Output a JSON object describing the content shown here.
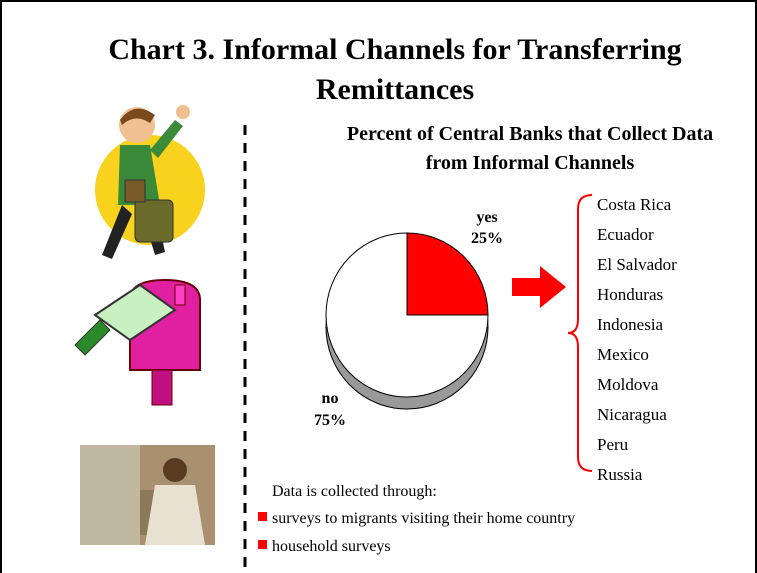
{
  "title": "Chart 3. Informal Channels for Transferring Remittances",
  "chart_data": {
    "type": "pie",
    "title": "Percent of Central Banks that Collect Data from Informal Channels",
    "categories": [
      "yes",
      "no"
    ],
    "values": [
      25,
      75
    ],
    "value_labels": [
      "25%",
      "75%"
    ],
    "colors": [
      "#ff0000",
      "#ffffff"
    ]
  },
  "countries": [
    "Costa Rica",
    "Ecuador",
    "El Salvador",
    "Honduras",
    "Indonesia",
    "Mexico",
    "Moldova",
    "Nicaragua",
    "Peru",
    "Russia"
  ],
  "notes": {
    "heading": "Data is collected through:",
    "items": [
      "surveys to migrants visiting their home country",
      "household surveys"
    ]
  }
}
